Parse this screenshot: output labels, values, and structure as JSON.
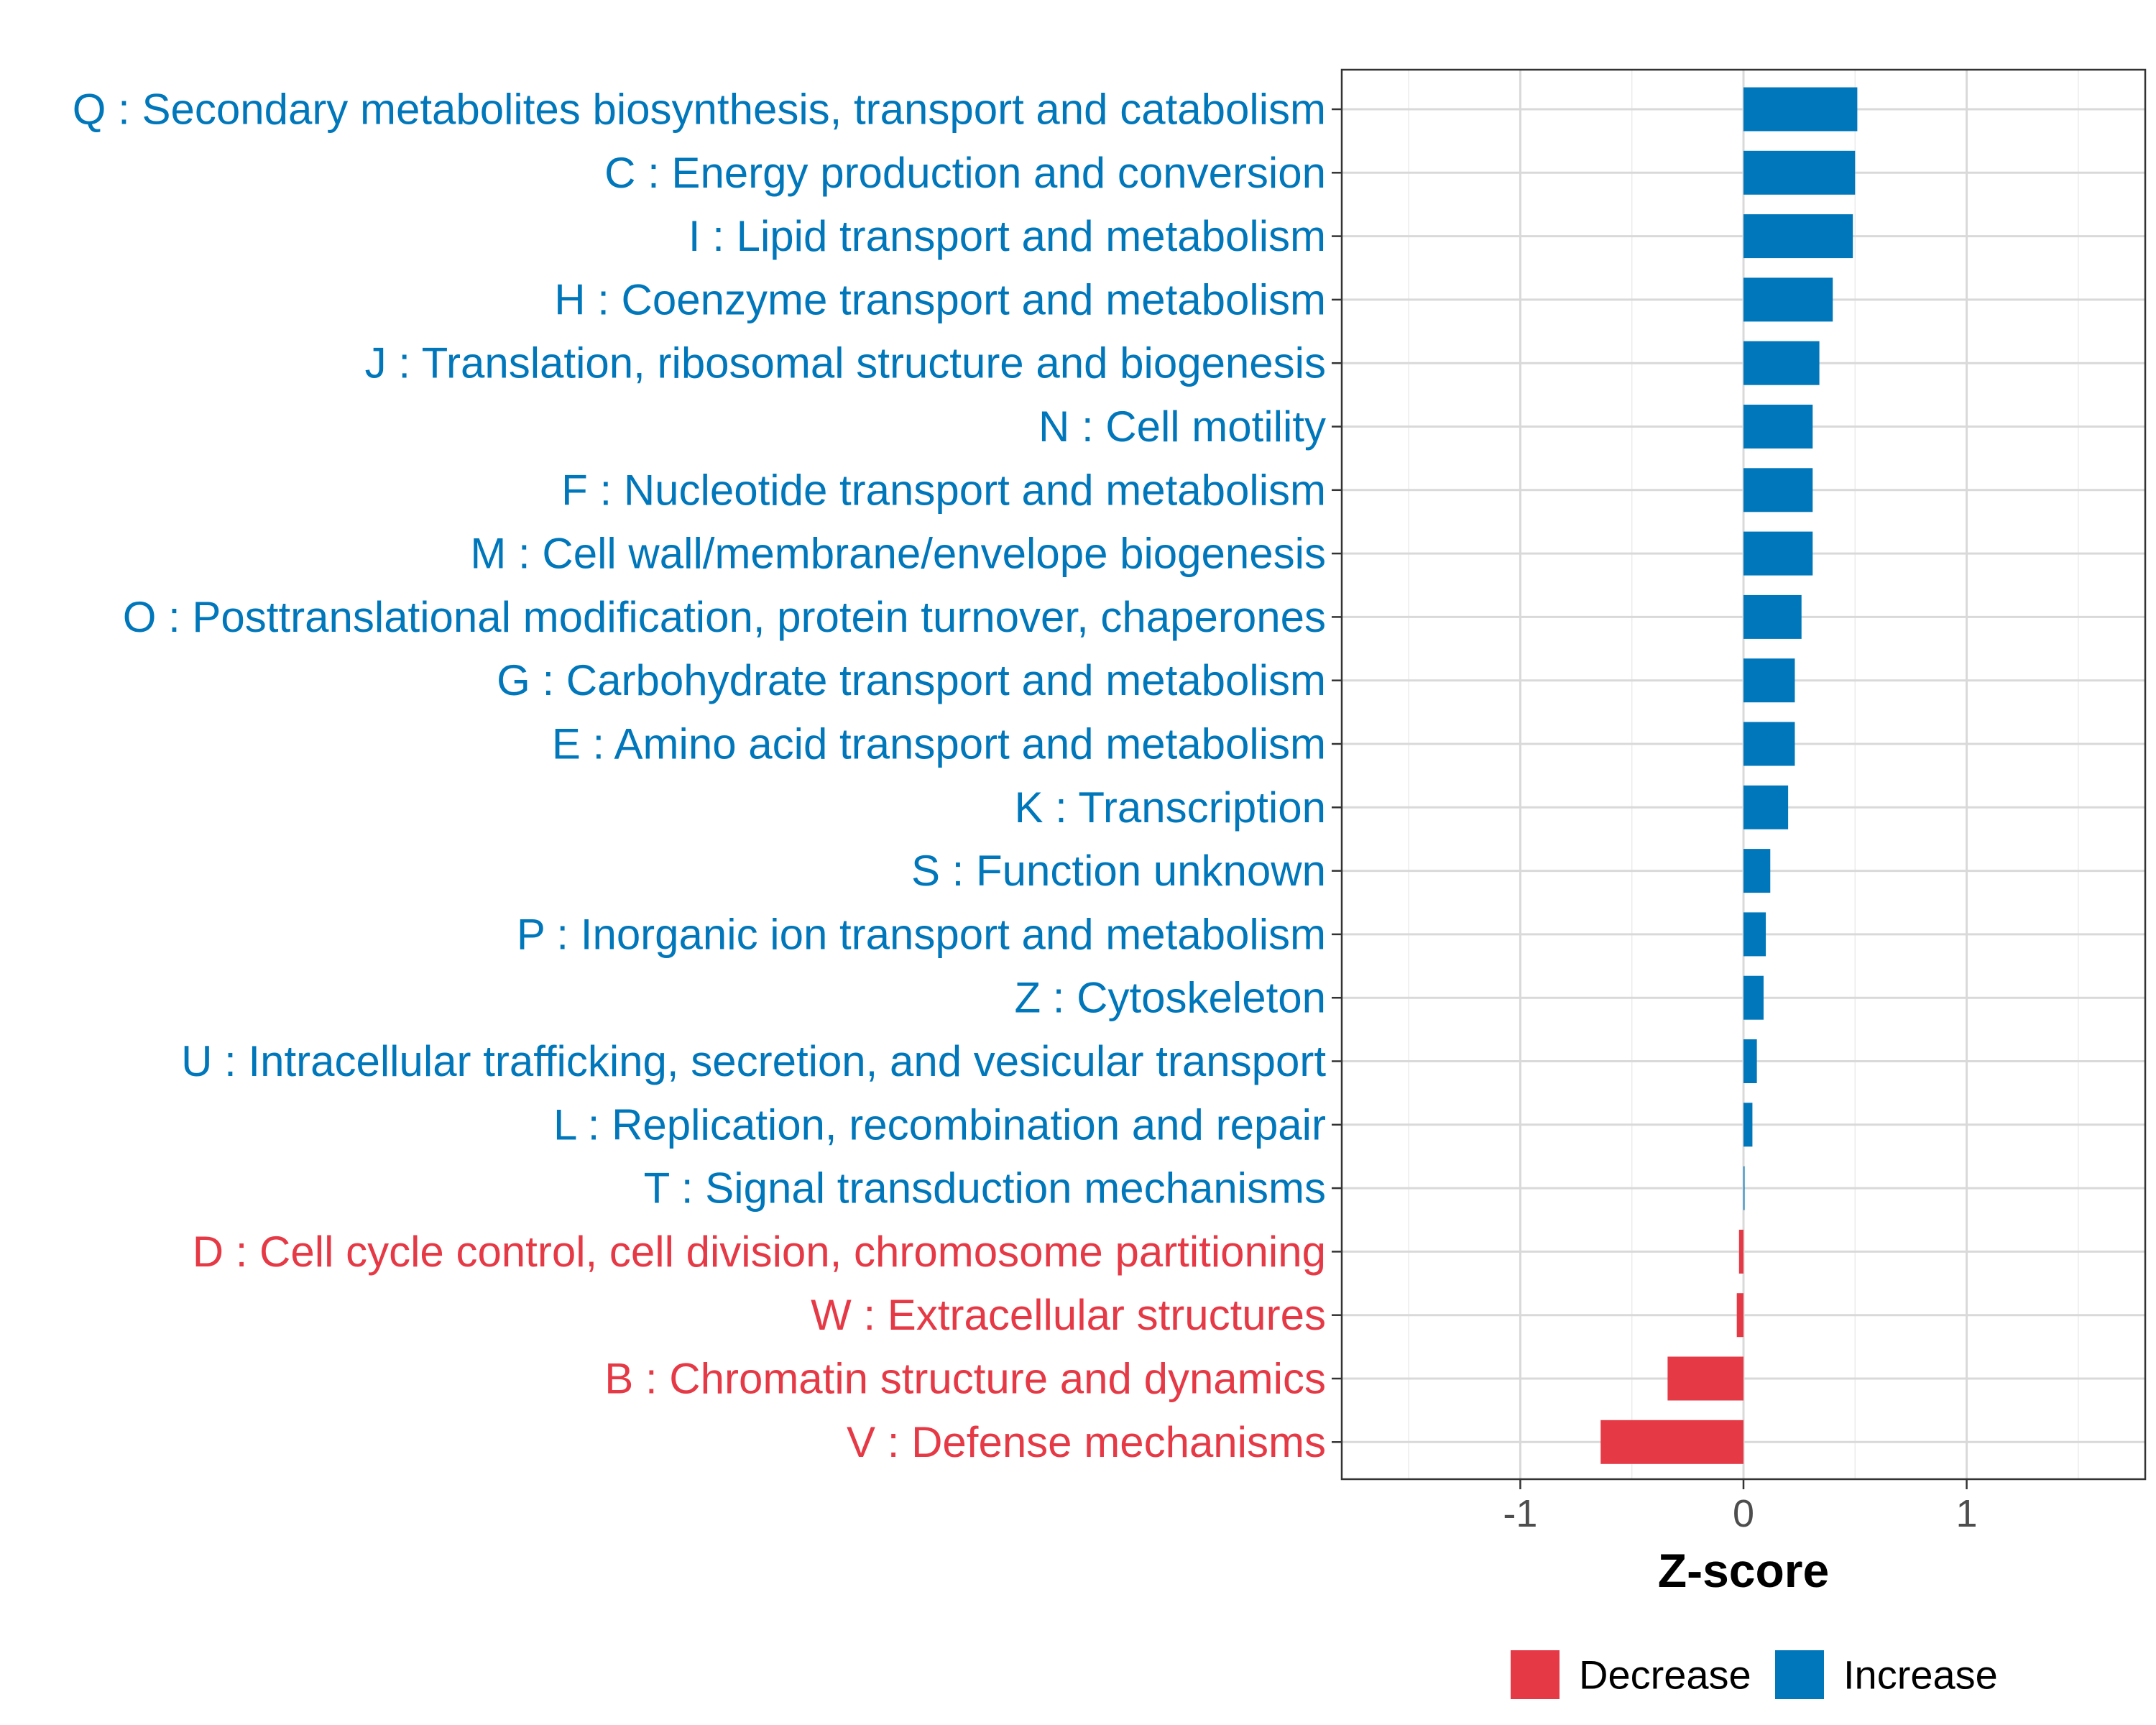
{
  "chart_data": {
    "type": "bar",
    "orientation": "horizontal",
    "xlabel": "Z-score",
    "ylabel": "",
    "xlim": [
      -1.8,
      1.8
    ],
    "xticks": [
      -1,
      0,
      1
    ],
    "xtick_labels": [
      "-1",
      "0",
      "1"
    ],
    "grid": true,
    "colors": {
      "Increase": "#0077BB",
      "Decrease": "#E63946"
    },
    "categories": [
      "Q : Secondary metabolites biosynthesis, transport and catabolism",
      "C : Energy production and conversion",
      "I : Lipid transport and metabolism",
      "H : Coenzyme transport and metabolism",
      "J : Translation, ribosomal structure and biogenesis",
      "N : Cell motility",
      "F : Nucleotide transport and metabolism",
      "M : Cell wall/membrane/envelope biogenesis",
      "O : Posttranslational modification, protein turnover, chaperones",
      "G : Carbohydrate transport and metabolism",
      "E : Amino acid transport and metabolism",
      "K : Transcription",
      "S : Function unknown",
      "P : Inorganic ion transport and metabolism",
      "Z : Cytoskeleton",
      "U : Intracellular trafficking, secretion, and vesicular transport",
      "L : Replication, recombination and repair",
      "T : Signal transduction mechanisms",
      "D : Cell cycle control, cell division, chromosome partitioning",
      "W : Extracellular structures",
      "B : Chromatin structure and dynamics",
      "V : Defense mechanisms"
    ],
    "values": [
      0.51,
      0.5,
      0.49,
      0.4,
      0.34,
      0.31,
      0.31,
      0.31,
      0.26,
      0.23,
      0.23,
      0.2,
      0.12,
      0.1,
      0.09,
      0.06,
      0.04,
      0.005,
      -0.02,
      -0.03,
      -0.34,
      -0.64
    ],
    "groups": [
      "Increase",
      "Increase",
      "Increase",
      "Increase",
      "Increase",
      "Increase",
      "Increase",
      "Increase",
      "Increase",
      "Increase",
      "Increase",
      "Increase",
      "Increase",
      "Increase",
      "Increase",
      "Increase",
      "Increase",
      "Increase",
      "Decrease",
      "Decrease",
      "Decrease",
      "Decrease"
    ],
    "legend": {
      "position": "bottom",
      "entries": [
        {
          "label": "Decrease",
          "color": "#E63946"
        },
        {
          "label": "Increase",
          "color": "#0077BB"
        }
      ]
    }
  }
}
